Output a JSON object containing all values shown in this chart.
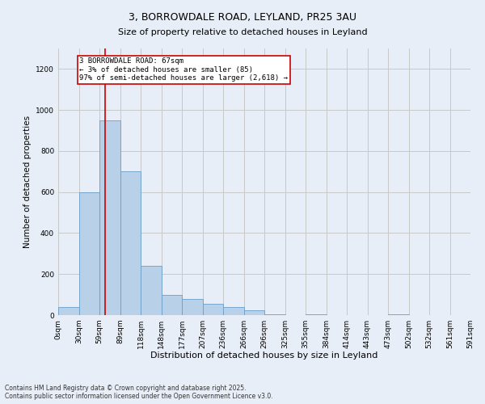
{
  "title": "3, BORROWDALE ROAD, LEYLAND, PR25 3AU",
  "subtitle": "Size of property relative to detached houses in Leyland",
  "xlabel": "Distribution of detached houses by size in Leyland",
  "ylabel": "Number of detached properties",
  "annotation_line1": "3 BORROWDALE ROAD: 67sqm",
  "annotation_line2": "← 3% of detached houses are smaller (85)",
  "annotation_line3": "97% of semi-detached houses are larger (2,618) →",
  "property_size": 67,
  "bar_color": "#b8d0e8",
  "bar_edge_color": "#6a9ec8",
  "grid_color": "#c8c8c8",
  "bg_color": "#e8eef7",
  "red_line_color": "#cc0000",
  "footer": "Contains HM Land Registry data © Crown copyright and database right 2025.\nContains public sector information licensed under the Open Government Licence v3.0.",
  "bin_starts": [
    0,
    29.5,
    59,
    88.5,
    118,
    147.5,
    177,
    206.5,
    236,
    265.5,
    295,
    324.5,
    354,
    383.5,
    413,
    442.5,
    472,
    501.5,
    531,
    560.5
  ],
  "bin_width": 29.5,
  "bin_labels": [
    "0sqm",
    "30sqm",
    "59sqm",
    "89sqm",
    "118sqm",
    "148sqm",
    "177sqm",
    "207sqm",
    "236sqm",
    "266sqm",
    "296sqm",
    "325sqm",
    "355sqm",
    "384sqm",
    "414sqm",
    "443sqm",
    "473sqm",
    "502sqm",
    "532sqm",
    "561sqm",
    "591sqm"
  ],
  "bar_heights": [
    40,
    600,
    950,
    700,
    240,
    100,
    80,
    55,
    40,
    25,
    5,
    0,
    5,
    0,
    0,
    0,
    5,
    0,
    0,
    0
  ],
  "ylim": [
    0,
    1300
  ],
  "yticks": [
    0,
    200,
    400,
    600,
    800,
    1000,
    1200
  ],
  "title_fontsize": 9,
  "subtitle_fontsize": 8,
  "xlabel_fontsize": 8,
  "ylabel_fontsize": 7.5,
  "tick_fontsize": 6.5,
  "annotation_fontsize": 6.5,
  "footer_fontsize": 5.5
}
